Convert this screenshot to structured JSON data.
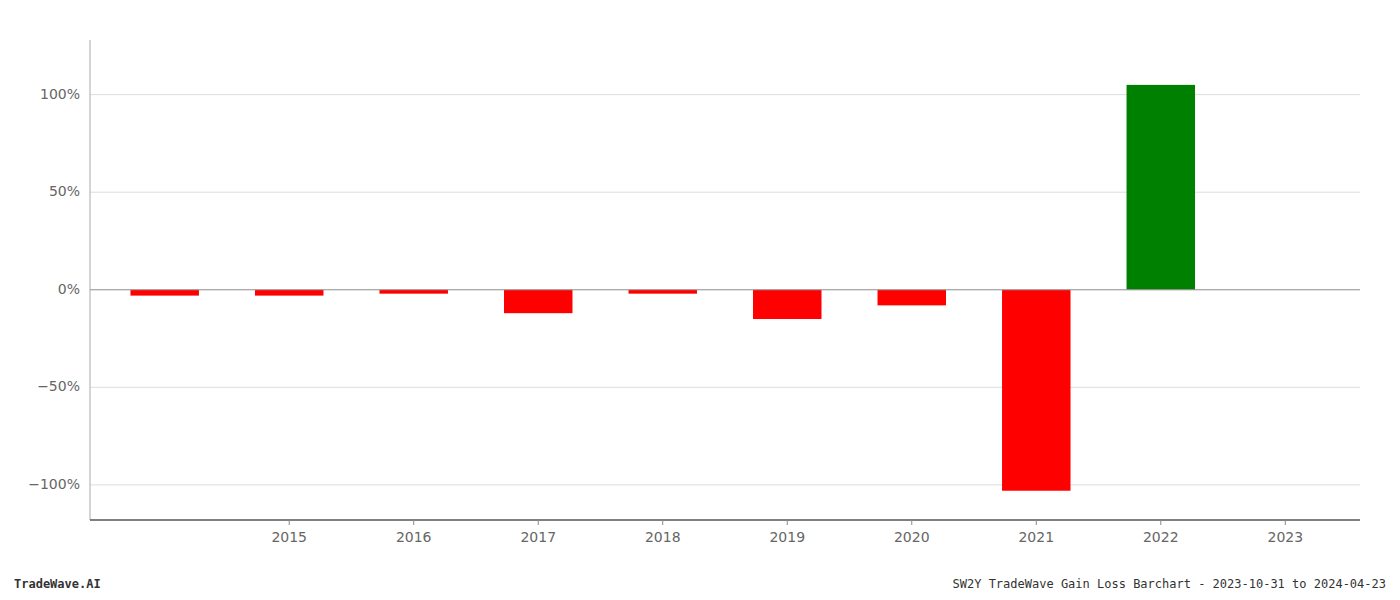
{
  "chart_data": {
    "type": "bar",
    "x": [
      2014,
      2015,
      2016,
      2017,
      2018,
      2019,
      2020,
      2021,
      2022,
      2023
    ],
    "values": [
      -0.03,
      -0.03,
      -0.02,
      -0.12,
      -0.02,
      -0.15,
      -0.08,
      -1.03,
      1.05,
      0.0
    ],
    "colors": [
      "red",
      "red",
      "red",
      "red",
      "red",
      "red",
      "red",
      "red",
      "green",
      "green"
    ],
    "xlim": [
      2013.4,
      2023.6
    ],
    "xticks": [
      2015,
      2016,
      2017,
      2018,
      2019,
      2020,
      2021,
      2022,
      2023
    ],
    "ylim": [
      -1.18,
      1.28
    ],
    "yticks": [
      {
        "value": -1.0,
        "label": "−100%"
      },
      {
        "value": -0.5,
        "label": "−50%"
      },
      {
        "value": 0.0,
        "label": "0%"
      },
      {
        "value": 0.5,
        "label": "50%"
      },
      {
        "value": 1.0,
        "label": "100%"
      }
    ],
    "grid": true,
    "annotations": [
      "TradeWave.AI",
      "SW2Y TradeWave Gain Loss Barchart - 2023-10-31 to 2024-04-23"
    ]
  }
}
